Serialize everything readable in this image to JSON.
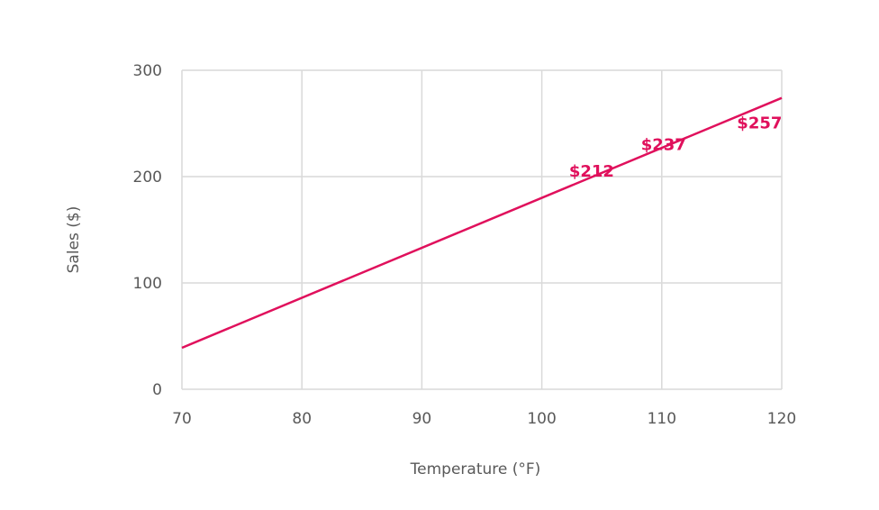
{
  "chart_data": {
    "type": "line",
    "title": "",
    "xlabel": "Temperature (°F)",
    "ylabel": "Sales ($)",
    "xlim": [
      70,
      120
    ],
    "ylim": [
      0,
      300
    ],
    "x_ticks": [
      "70",
      "80",
      "90",
      "100",
      "110",
      "120"
    ],
    "y_ticks": [
      "0",
      "100",
      "200",
      "300"
    ],
    "grid": true,
    "legend": null,
    "series": [
      {
        "name": "Sales",
        "color": "#e0105c",
        "x": [
          70,
          120
        ],
        "values": [
          39,
          274
        ]
      }
    ],
    "annotations": [
      {
        "text": "$212",
        "x": 104,
        "y": 212
      },
      {
        "text": "$237",
        "x": 110,
        "y": 237
      },
      {
        "text": "$257",
        "x": 118,
        "y": 257
      }
    ]
  },
  "colors": {
    "line": "#e0105c",
    "grid": "#d9d9d9",
    "text": "#595959"
  }
}
